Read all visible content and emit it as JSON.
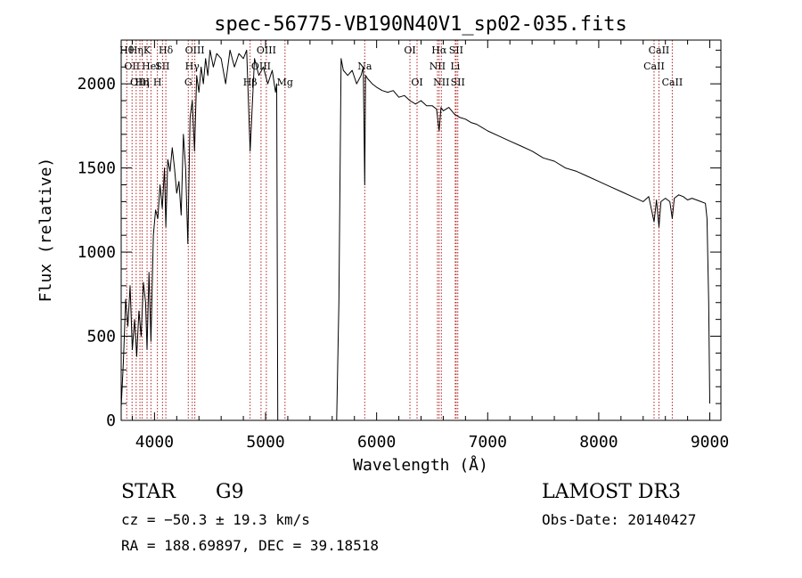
{
  "chart_data": {
    "type": "line",
    "title": "spec-56775-VB190N40V1_sp02-035.fits",
    "xlabel": "Wavelength (Å)",
    "ylabel": "Flux (relative)",
    "xlim": [
      3700,
      9100
    ],
    "ylim": [
      0,
      2260
    ],
    "x_ticks": [
      4000,
      5000,
      6000,
      7000,
      8000,
      9000
    ],
    "y_ticks": [
      0,
      500,
      1000,
      1500,
      2000
    ],
    "x_tick_labels": [
      "4000",
      "5000",
      "6000",
      "7000",
      "8000",
      "9000"
    ],
    "y_tick_labels": [
      "0",
      "500",
      "1000",
      "1500",
      "2000"
    ],
    "line_color": "#000000",
    "marker_color": "#b22222",
    "spectrum": {
      "name": "flux",
      "x": [
        3700,
        3720,
        3740,
        3760,
        3780,
        3800,
        3820,
        3840,
        3860,
        3880,
        3900,
        3920,
        3933,
        3950,
        3968,
        3990,
        4010,
        4030,
        4050,
        4070,
        4090,
        4102,
        4120,
        4140,
        4160,
        4180,
        4200,
        4220,
        4240,
        4260,
        4280,
        4300,
        4320,
        4340,
        4360,
        4380,
        4400,
        4420,
        4440,
        4460,
        4480,
        4500,
        4530,
        4560,
        4600,
        4640,
        4680,
        4720,
        4760,
        4800,
        4830,
        4861,
        4900,
        4940,
        4980,
        5020,
        5060,
        5090,
        5100,
        5110,
        5640,
        5660,
        5680,
        5700,
        5740,
        5780,
        5820,
        5860,
        5880,
        5893,
        5900,
        5920,
        5960,
        6000,
        6050,
        6100,
        6150,
        6200,
        6250,
        6300,
        6350,
        6400,
        6450,
        6500,
        6540,
        6563,
        6580,
        6600,
        6650,
        6700,
        6750,
        6800,
        6850,
        6900,
        6950,
        7000,
        7100,
        7200,
        7300,
        7400,
        7500,
        7600,
        7700,
        7800,
        7900,
        8000,
        8100,
        8200,
        8300,
        8400,
        8450,
        8498,
        8520,
        8542,
        8560,
        8600,
        8640,
        8662,
        8680,
        8720,
        8760,
        8800,
        8840,
        8880,
        8920,
        8960,
        8975,
        8990,
        9000
      ],
      "y": [
        80,
        350,
        720,
        560,
        800,
        420,
        600,
        380,
        650,
        500,
        820,
        700,
        420,
        880,
        470,
        1100,
        1250,
        1200,
        1400,
        1260,
        1500,
        1150,
        1550,
        1480,
        1620,
        1500,
        1350,
        1420,
        1220,
        1700,
        1500,
        1050,
        1800,
        1900,
        1600,
        2050,
        1950,
        2100,
        2000,
        2150,
        2050,
        2200,
        2100,
        2180,
        2150,
        2000,
        2200,
        2100,
        2180,
        2150,
        2200,
        1600,
        2150,
        2050,
        2100,
        2000,
        2080,
        1950,
        2000,
        0,
        0,
        700,
        2150,
        2080,
        2050,
        2080,
        2000,
        2050,
        2100,
        1400,
        2050,
        2030,
        2000,
        1980,
        1960,
        1950,
        1960,
        1920,
        1930,
        1900,
        1880,
        1900,
        1870,
        1870,
        1850,
        1720,
        1860,
        1840,
        1860,
        1820,
        1800,
        1790,
        1770,
        1760,
        1740,
        1720,
        1690,
        1660,
        1630,
        1600,
        1560,
        1540,
        1500,
        1480,
        1450,
        1420,
        1390,
        1360,
        1330,
        1300,
        1330,
        1180,
        1310,
        1150,
        1300,
        1320,
        1300,
        1200,
        1320,
        1340,
        1330,
        1310,
        1320,
        1310,
        1300,
        1290,
        1200,
        700,
        100
      ]
    },
    "line_markers": [
      {
        "x": 3750,
        "row": 0,
        "label": "Hθ"
      },
      {
        "x": 3798,
        "row": 1,
        "label": "OII"
      },
      {
        "x": 3835,
        "row": 0,
        "label": "Hη"
      },
      {
        "x": 3869,
        "row": 2,
        "label": "OIII"
      },
      {
        "x": 3889,
        "row": 2,
        "label": "Hη"
      },
      {
        "x": 3933,
        "row": 0,
        "label": "K"
      },
      {
        "x": 3968,
        "row": 1,
        "label": "HeI"
      },
      {
        "x": 4026,
        "row": 2,
        "label": "H"
      },
      {
        "x": 4072,
        "row": 1,
        "label": "SII"
      },
      {
        "x": 4102,
        "row": 0,
        "label": "Hδ"
      },
      {
        "x": 4304,
        "row": 2,
        "label": "G"
      },
      {
        "x": 4340,
        "row": 1,
        "label": "Hγ"
      },
      {
        "x": 4363,
        "row": 0,
        "label": "OIII"
      },
      {
        "x": 4861,
        "row": 2,
        "label": "Hβ"
      },
      {
        "x": 4959,
        "row": 1,
        "label": "OIII"
      },
      {
        "x": 5007,
        "row": 0,
        "label": "OIII"
      },
      {
        "x": 5175,
        "row": 2,
        "label": "Mg"
      },
      {
        "x": 5893,
        "row": 1,
        "label": "Na"
      },
      {
        "x": 6300,
        "row": 0,
        "label": "OI"
      },
      {
        "x": 6364,
        "row": 2,
        "label": "OI"
      },
      {
        "x": 6548,
        "row": 1,
        "label": "NII"
      },
      {
        "x": 6563,
        "row": 0,
        "label": "Hα"
      },
      {
        "x": 6583,
        "row": 2,
        "label": "NII"
      },
      {
        "x": 6708,
        "row": 1,
        "label": "Li"
      },
      {
        "x": 6716,
        "row": 0,
        "label": "SII"
      },
      {
        "x": 6731,
        "row": 2,
        "label": "SII"
      },
      {
        "x": 8498,
        "row": 1,
        "label": "CaII"
      },
      {
        "x": 8542,
        "row": 0,
        "label": "CaII"
      },
      {
        "x": 8662,
        "row": 2,
        "label": "CaII"
      }
    ]
  },
  "info": {
    "class_label": "STAR",
    "subclass": "G9",
    "survey": "LAMOST DR3",
    "redshift_line": "cz = −50.3 ± 19.3 km/s",
    "obs_date_line": "Obs-Date: 20140427",
    "coords_line": "RA = 188.69897, DEC =  39.18518"
  }
}
